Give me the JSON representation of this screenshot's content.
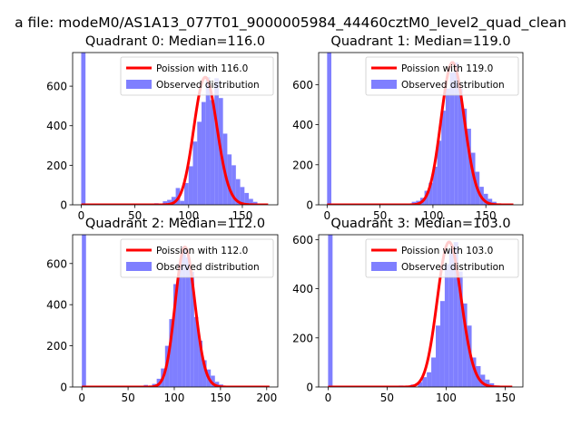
{
  "suptitle": "a file: modeM0/AS1A13_077T01_9000005984_44460cztM0_level2_quad_clean",
  "colors": {
    "hist": "#7f7fff",
    "poisson": "#ff0000",
    "legend_border": "#cccccc",
    "axis": "#000000"
  },
  "legend_labels": {
    "poisson_prefix": "Poission with ",
    "observed": "Observed distribution"
  },
  "chart_data": [
    {
      "type": "bar",
      "title": "Quadrant 0: Median=116.0",
      "median": 116.0,
      "poisson_label": "Poission with 116.0",
      "observed_label": "Observed distribution",
      "xlim": [
        -8,
        183
      ],
      "ylim": [
        0,
        770
      ],
      "xticks": [
        0,
        50,
        100,
        150
      ],
      "yticks": [
        0,
        200,
        400,
        600
      ],
      "bin_width": 4,
      "bins": [
        {
          "x": 0,
          "h": 770
        },
        {
          "x": 4,
          "h": 2
        },
        {
          "x": 40,
          "h": 2
        },
        {
          "x": 60,
          "h": 4
        },
        {
          "x": 68,
          "h": 8
        },
        {
          "x": 76,
          "h": 18
        },
        {
          "x": 80,
          "h": 25
        },
        {
          "x": 84,
          "h": 40
        },
        {
          "x": 88,
          "h": 85
        },
        {
          "x": 92,
          "h": 20
        },
        {
          "x": 96,
          "h": 110
        },
        {
          "x": 100,
          "h": 195
        },
        {
          "x": 104,
          "h": 320
        },
        {
          "x": 108,
          "h": 420
        },
        {
          "x": 112,
          "h": 520
        },
        {
          "x": 116,
          "h": 645
        },
        {
          "x": 120,
          "h": 530
        },
        {
          "x": 124,
          "h": 640
        },
        {
          "x": 128,
          "h": 540
        },
        {
          "x": 132,
          "h": 360
        },
        {
          "x": 136,
          "h": 255
        },
        {
          "x": 140,
          "h": 200
        },
        {
          "x": 144,
          "h": 130
        },
        {
          "x": 148,
          "h": 90
        },
        {
          "x": 152,
          "h": 60
        },
        {
          "x": 156,
          "h": 30
        },
        {
          "x": 160,
          "h": 15
        },
        {
          "x": 164,
          "h": 6
        }
      ],
      "curve_range": [
        0,
        174
      ]
    },
    {
      "type": "bar",
      "title": "Quadrant 1: Median=119.0",
      "median": 119.0,
      "poisson_label": "Poission with 119.0",
      "observed_label": "Observed distribution",
      "xlim": [
        -8,
        185
      ],
      "ylim": [
        0,
        760
      ],
      "xticks": [
        0,
        50,
        100,
        150
      ],
      "yticks": [
        0,
        200,
        400,
        600
      ],
      "bin_width": 4,
      "bins": [
        {
          "x": 0,
          "h": 760
        },
        {
          "x": 4,
          "h": 2
        },
        {
          "x": 60,
          "h": 3
        },
        {
          "x": 72,
          "h": 6
        },
        {
          "x": 80,
          "h": 15
        },
        {
          "x": 84,
          "h": 20
        },
        {
          "x": 88,
          "h": 35
        },
        {
          "x": 92,
          "h": 70
        },
        {
          "x": 96,
          "h": 110
        },
        {
          "x": 100,
          "h": 190
        },
        {
          "x": 104,
          "h": 320
        },
        {
          "x": 108,
          "h": 470
        },
        {
          "x": 112,
          "h": 580
        },
        {
          "x": 116,
          "h": 660
        },
        {
          "x": 120,
          "h": 710
        },
        {
          "x": 124,
          "h": 580
        },
        {
          "x": 128,
          "h": 480
        },
        {
          "x": 132,
          "h": 380
        },
        {
          "x": 136,
          "h": 260
        },
        {
          "x": 140,
          "h": 165
        },
        {
          "x": 144,
          "h": 90
        },
        {
          "x": 148,
          "h": 55
        },
        {
          "x": 152,
          "h": 30
        },
        {
          "x": 156,
          "h": 15
        },
        {
          "x": 160,
          "h": 6
        }
      ],
      "curve_range": [
        0,
        176
      ]
    },
    {
      "type": "bar",
      "title": "Quadrant 2: Median=112.0",
      "median": 112.0,
      "poisson_label": "Poission with 112.0",
      "observed_label": "Observed distribution",
      "xlim": [
        -10,
        212
      ],
      "ylim": [
        0,
        740
      ],
      "xticks": [
        0,
        50,
        100,
        150,
        200
      ],
      "yticks": [
        0,
        200,
        400,
        600
      ],
      "bin_width": 4.5,
      "bins": [
        {
          "x": 0,
          "h": 740
        },
        {
          "x": 4.5,
          "h": 2
        },
        {
          "x": 40,
          "h": 3
        },
        {
          "x": 58,
          "h": 6
        },
        {
          "x": 67,
          "h": 10
        },
        {
          "x": 76,
          "h": 15
        },
        {
          "x": 81,
          "h": 40
        },
        {
          "x": 85.5,
          "h": 90
        },
        {
          "x": 90,
          "h": 200
        },
        {
          "x": 94.5,
          "h": 330
        },
        {
          "x": 99,
          "h": 500
        },
        {
          "x": 103.5,
          "h": 600
        },
        {
          "x": 108,
          "h": 680
        },
        {
          "x": 112.5,
          "h": 630
        },
        {
          "x": 117,
          "h": 560
        },
        {
          "x": 121.5,
          "h": 340
        },
        {
          "x": 126,
          "h": 225
        },
        {
          "x": 130.5,
          "h": 130
        },
        {
          "x": 135,
          "h": 85
        },
        {
          "x": 139.5,
          "h": 55
        },
        {
          "x": 144,
          "h": 25
        },
        {
          "x": 148.5,
          "h": 12
        },
        {
          "x": 153,
          "h": 5
        }
      ],
      "curve_range": [
        0,
        203
      ]
    },
    {
      "type": "bar",
      "title": "Quadrant 3: Median=103.0",
      "median": 103.0,
      "poisson_label": "Poission with 103.0",
      "observed_label": "Observed distribution",
      "xlim": [
        -8,
        165
      ],
      "ylim": [
        0,
        620
      ],
      "xticks": [
        0,
        50,
        100,
        150
      ],
      "yticks": [
        0,
        200,
        400,
        600
      ],
      "bin_width": 3.8,
      "bins": [
        {
          "x": 0,
          "h": 620
        },
        {
          "x": 3.8,
          "h": 2
        },
        {
          "x": 45,
          "h": 3
        },
        {
          "x": 60,
          "h": 6
        },
        {
          "x": 70,
          "h": 10
        },
        {
          "x": 76,
          "h": 20
        },
        {
          "x": 79.8,
          "h": 40
        },
        {
          "x": 83.6,
          "h": 60
        },
        {
          "x": 87.4,
          "h": 120
        },
        {
          "x": 91.2,
          "h": 250
        },
        {
          "x": 95,
          "h": 350
        },
        {
          "x": 98.8,
          "h": 500
        },
        {
          "x": 102.6,
          "h": 560
        },
        {
          "x": 106.4,
          "h": 590
        },
        {
          "x": 110.2,
          "h": 470
        },
        {
          "x": 114,
          "h": 340
        },
        {
          "x": 117.8,
          "h": 250
        },
        {
          "x": 121.6,
          "h": 120
        },
        {
          "x": 125.4,
          "h": 85
        },
        {
          "x": 129.2,
          "h": 50
        },
        {
          "x": 133,
          "h": 30
        },
        {
          "x": 136.8,
          "h": 15
        },
        {
          "x": 140.6,
          "h": 6
        }
      ],
      "curve_range": [
        0,
        156
      ]
    }
  ]
}
